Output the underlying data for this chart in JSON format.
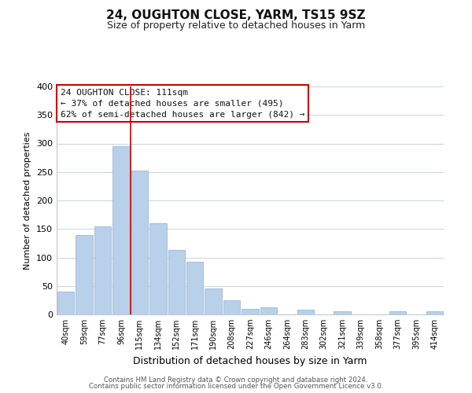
{
  "title": "24, OUGHTON CLOSE, YARM, TS15 9SZ",
  "subtitle": "Size of property relative to detached houses in Yarm",
  "xlabel": "Distribution of detached houses by size in Yarm",
  "ylabel": "Number of detached properties",
  "bar_labels": [
    "40sqm",
    "59sqm",
    "77sqm",
    "96sqm",
    "115sqm",
    "134sqm",
    "152sqm",
    "171sqm",
    "190sqm",
    "208sqm",
    "227sqm",
    "246sqm",
    "264sqm",
    "283sqm",
    "302sqm",
    "321sqm",
    "339sqm",
    "358sqm",
    "377sqm",
    "395sqm",
    "414sqm"
  ],
  "bar_values": [
    40,
    139,
    155,
    295,
    253,
    160,
    113,
    92,
    46,
    25,
    10,
    13,
    0,
    8,
    0,
    5,
    0,
    0,
    5,
    0,
    5
  ],
  "bar_color": "#b8d0ea",
  "marker_line_color": "#cc0000",
  "marker_line_index": 4,
  "ylim": [
    0,
    400
  ],
  "yticks": [
    0,
    50,
    100,
    150,
    200,
    250,
    300,
    350,
    400
  ],
  "annotation_title": "24 OUGHTON CLOSE: 111sqm",
  "annotation_line1": "← 37% of detached houses are smaller (495)",
  "annotation_line2": "62% of semi-detached houses are larger (842) →",
  "annotation_box_facecolor": "#ffffff",
  "annotation_box_edgecolor": "#cc0000",
  "footer1": "Contains HM Land Registry data © Crown copyright and database right 2024.",
  "footer2": "Contains public sector information licensed under the Open Government Licence v3.0.",
  "background_color": "#ffffff",
  "grid_color": "#c8d4e0",
  "spine_color": "#c0c8d4",
  "title_fontsize": 11,
  "subtitle_fontsize": 9,
  "ylabel_fontsize": 8,
  "xlabel_fontsize": 9,
  "tick_fontsize": 8,
  "xtick_fontsize": 7,
  "ann_fontsize": 8
}
